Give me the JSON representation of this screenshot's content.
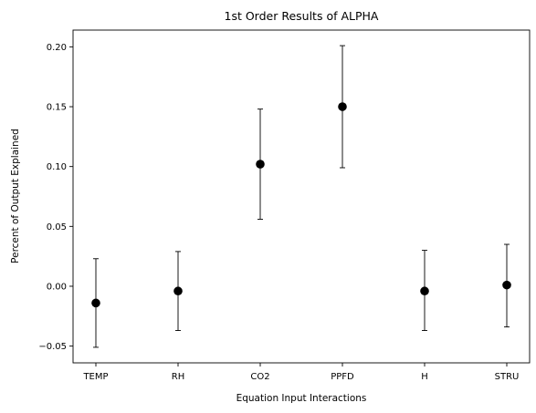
{
  "chart_data": {
    "type": "scatter",
    "title": "1st Order Results of ALPHA",
    "xlabel": "Equation Input Interactions",
    "ylabel": "Percent of Output Explained",
    "categories": [
      "TEMP",
      "RH",
      "CO2",
      "PPFD",
      "H",
      "STRU"
    ],
    "series": [
      {
        "values": [
          -0.014,
          -0.004,
          0.102,
          0.15,
          -0.004,
          0.001
        ],
        "err_low": [
          -0.051,
          -0.037,
          0.056,
          0.099,
          -0.037,
          -0.034
        ],
        "err_high": [
          0.023,
          0.029,
          0.148,
          0.201,
          0.03,
          0.035
        ]
      }
    ],
    "ylim": [
      -0.064,
      0.214
    ],
    "yticks": [
      -0.05,
      0.0,
      0.05,
      0.1,
      0.15,
      0.2
    ],
    "ytick_labels": [
      "−0.05",
      "0.00",
      "0.05",
      "0.10",
      "0.15",
      "0.20"
    ],
    "grid": false,
    "marker_color": "#000000"
  }
}
